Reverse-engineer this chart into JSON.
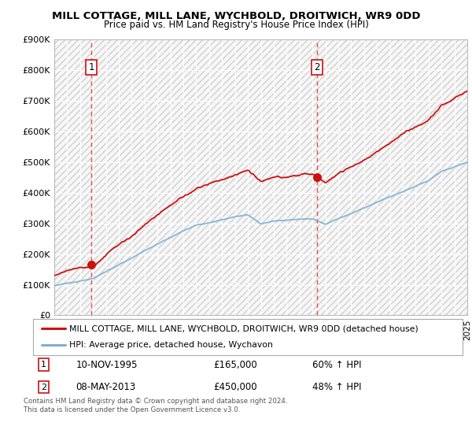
{
  "title1": "MILL COTTAGE, MILL LANE, WYCHBOLD, DROITWICH, WR9 0DD",
  "title2": "Price paid vs. HM Land Registry's House Price Index (HPI)",
  "ylim": [
    0,
    900000
  ],
  "yticks": [
    0,
    100000,
    200000,
    300000,
    400000,
    500000,
    600000,
    700000,
    800000,
    900000
  ],
  "ytick_labels": [
    "£0",
    "£100K",
    "£200K",
    "£300K",
    "£400K",
    "£500K",
    "£600K",
    "£700K",
    "£800K",
    "£900K"
  ],
  "sale1_date": 1995.87,
  "sale1_price": 165000,
  "sale1_label": "1",
  "sale2_date": 2013.36,
  "sale2_price": 450000,
  "sale2_label": "2",
  "hpi_line_color": "#7bafd4",
  "price_line_color": "#cc1111",
  "sale_marker_color": "#cc1111",
  "vline_color": "#e05050",
  "grid_color": "#cccccc",
  "legend_entry1": "MILL COTTAGE, MILL LANE, WYCHBOLD, DROITWICH, WR9 0DD (detached house)",
  "legend_entry2": "HPI: Average price, detached house, Wychavon",
  "note1_label": "1",
  "note1_date": "10-NOV-1995",
  "note1_price": "£165,000",
  "note1_hpi": "60% ↑ HPI",
  "note2_label": "2",
  "note2_date": "08-MAY-2013",
  "note2_price": "£450,000",
  "note2_hpi": "48% ↑ HPI",
  "footer": "Contains HM Land Registry data © Crown copyright and database right 2024.\nThis data is licensed under the Open Government Licence v3.0.",
  "xmin": 1993,
  "xmax": 2025
}
